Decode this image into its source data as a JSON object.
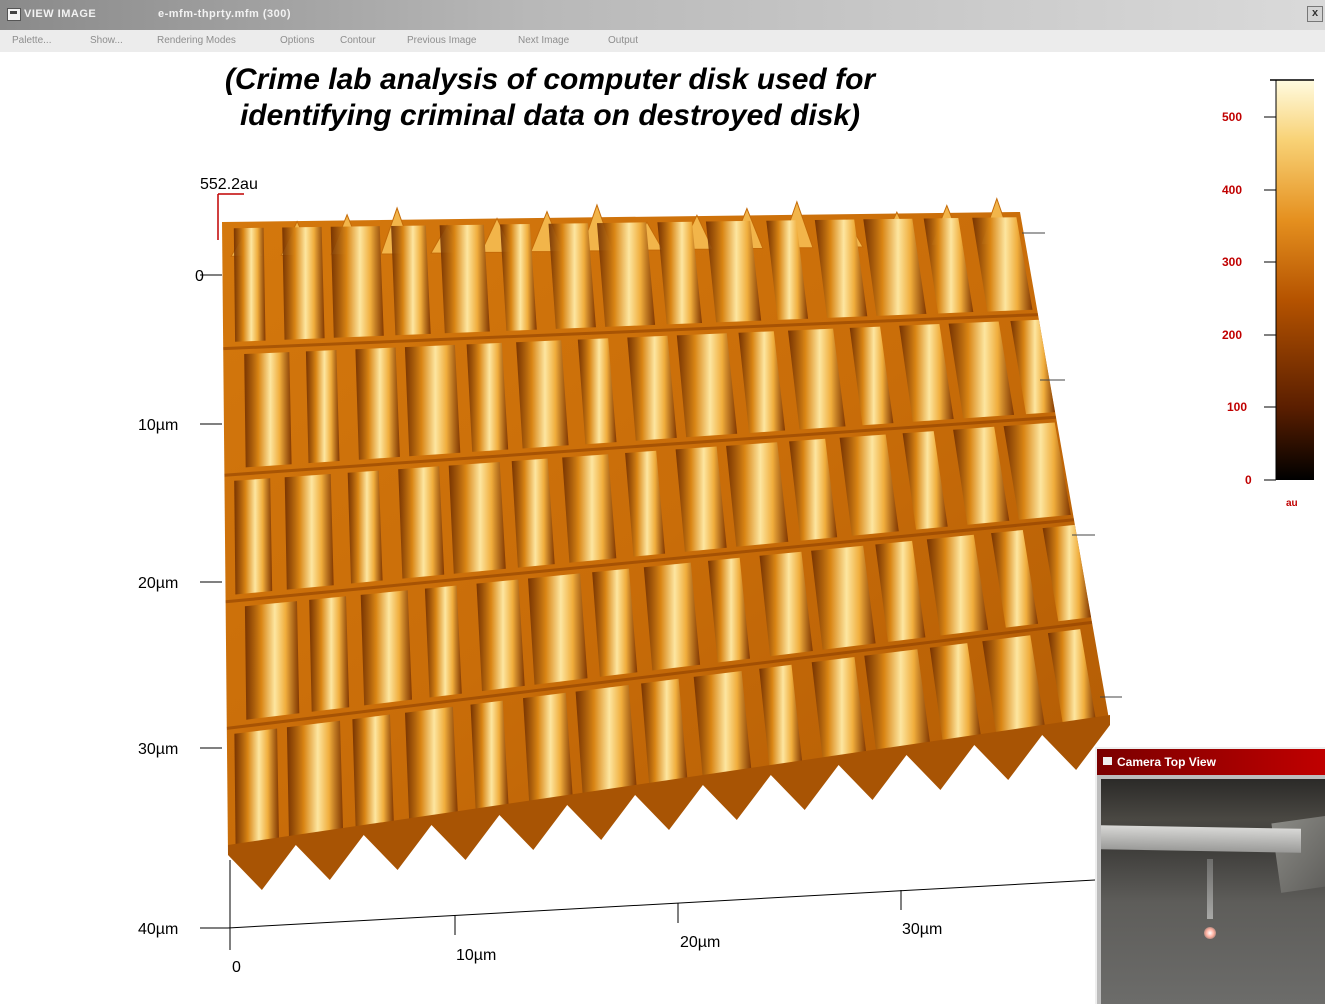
{
  "window": {
    "title_app": "VIEW IMAGE",
    "title_file": "e-mfm-thprty.mfm   (300)",
    "close_glyph": "x"
  },
  "menu": [
    "Palette...",
    "Show...",
    "Rendering Modes",
    "Options",
    "Contour",
    "Previous Image",
    "Next Image",
    "Output"
  ],
  "caption": {
    "line1": "(Crime lab analysis of computer disk used for",
    "line2": "identifying criminal data on destroyed disk)"
  },
  "plot": {
    "z_max_label": "552.2au",
    "z_zero_label": "0",
    "y_axis_labels": [
      "10µm",
      "20µm",
      "30µm",
      "40µm"
    ],
    "x_axis_labels": [
      "0",
      "10µm",
      "20µm",
      "30µm"
    ],
    "surface_colors": [
      "#6a2a00",
      "#b85a05",
      "#e08a1a",
      "#f6c25a",
      "#fff0b0"
    ]
  },
  "color_scale": {
    "ticks": [
      "500",
      "400",
      "300",
      "200",
      "100",
      "0"
    ],
    "unit": "au",
    "gradient": [
      "#000000",
      "#5a1e00",
      "#b55300",
      "#e5901f",
      "#f8d276",
      "#fffbe0"
    ]
  },
  "camera": {
    "title": "Camera Top View"
  }
}
